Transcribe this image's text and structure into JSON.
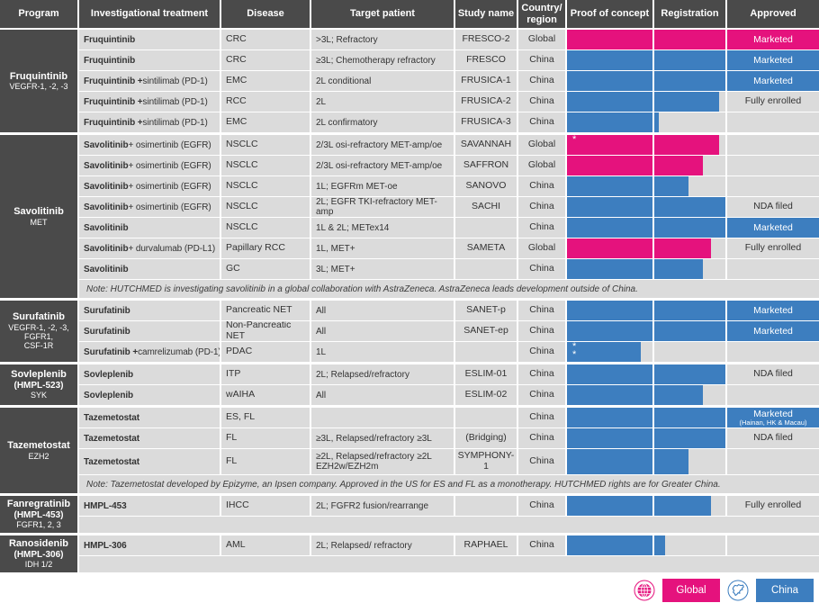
{
  "colors": {
    "pink": "#e5127d",
    "blue": "#3d7ebf",
    "dark": "#4a4a4a",
    "cell_bg": "#dbdbdb"
  },
  "legend": {
    "global_label": "Global",
    "china_label": "China"
  },
  "chart_data": {
    "type": "table",
    "columns": [
      "Program",
      "Investigational treatment",
      "Disease",
      "Target patient",
      "Study name",
      "Country/ region",
      "Proof of concept",
      "Registration",
      "Approved"
    ],
    "bar_note": "poc/reg values are percent fill of each phase column; color = country/region (pink Global, blue China)",
    "sections": [
      {
        "program": {
          "name": "Fruquintinib",
          "alias": "",
          "target": "VEGFR-1, -2, -3"
        },
        "rows": [
          {
            "t_bold": "Fruquintinib",
            "t_rest": "",
            "disease": "CRC",
            "target": ">3L; Refractory",
            "study": "FRESCO-2",
            "region": "Global",
            "color": "pink",
            "poc": 100,
            "reg": 100,
            "appr_fill": true,
            "appr_text": "Marketed",
            "appr_sub": "",
            "marker": ""
          },
          {
            "t_bold": "Fruquintinib",
            "t_rest": "",
            "disease": "CRC",
            "target": "≥3L; Chemotherapy refractory",
            "study": "FRESCO",
            "region": "China",
            "color": "blue",
            "poc": 100,
            "reg": 100,
            "appr_fill": true,
            "appr_text": "Marketed",
            "appr_sub": "",
            "marker": ""
          },
          {
            "t_bold": "Fruquintinib +",
            "t_rest": " sintilimab (PD-1)",
            "disease": "EMC",
            "target": "2L conditional",
            "study": "FRUSICA-1",
            "region": "China",
            "color": "blue",
            "poc": 100,
            "reg": 100,
            "appr_fill": true,
            "appr_text": "Marketed",
            "appr_sub": "",
            "marker": ""
          },
          {
            "t_bold": "Fruquintinib +",
            "t_rest": " sintilimab (PD-1)",
            "disease": "RCC",
            "target": "2L",
            "study": "FRUSICA-2",
            "region": "China",
            "color": "blue",
            "poc": 100,
            "reg": 91,
            "appr_fill": false,
            "appr_text": "Fully enrolled",
            "appr_sub": "",
            "marker": ""
          },
          {
            "t_bold": "Fruquintinib +",
            "t_rest": " sintilimab (PD-1)",
            "disease": "EMC",
            "target": "2L confirmatory",
            "study": "FRUSICA-3",
            "region": "China",
            "color": "blue",
            "poc": 100,
            "reg": 6,
            "appr_fill": false,
            "appr_text": "",
            "appr_sub": "",
            "marker": ""
          }
        ],
        "note": "",
        "filler": false
      },
      {
        "program": {
          "name": "Savolitinib",
          "alias": "",
          "target": "MET"
        },
        "rows": [
          {
            "t_bold": "Savolitinib",
            "t_rest": " + osimertinib (EGFR)",
            "disease": "NSCLC",
            "target": "2/3L osi-refractory MET-amp/oe",
            "study": "SAVANNAH",
            "region": "Global",
            "color": "pink",
            "poc": 100,
            "reg": 91,
            "appr_fill": false,
            "appr_text": "",
            "appr_sub": "",
            "marker": "*"
          },
          {
            "t_bold": "Savolitinib",
            "t_rest": " + osimertinib (EGFR)",
            "disease": "NSCLC",
            "target": "2/3L osi-refractory MET-amp/oe",
            "study": "SAFFRON",
            "region": "Global",
            "color": "pink",
            "poc": 100,
            "reg": 68,
            "appr_fill": false,
            "appr_text": "",
            "appr_sub": "",
            "marker": ""
          },
          {
            "t_bold": "Savolitinib",
            "t_rest": " + osimertinib (EGFR)",
            "disease": "NSCLC",
            "target": "1L; EGFRm MET-oe",
            "study": "SANOVO",
            "region": "China",
            "color": "blue",
            "poc": 100,
            "reg": 48,
            "appr_fill": false,
            "appr_text": "",
            "appr_sub": "",
            "marker": ""
          },
          {
            "t_bold": "Savolitinib",
            "t_rest": " + osimertinib (EGFR)",
            "disease": "NSCLC",
            "target": "2L; EGFR TKI-refractory MET-amp",
            "study": "SACHI",
            "region": "China",
            "color": "blue",
            "poc": 100,
            "reg": 100,
            "appr_fill": false,
            "appr_text": "NDA filed",
            "appr_sub": "",
            "marker": ""
          },
          {
            "t_bold": "Savolitinib",
            "t_rest": "",
            "disease": "NSCLC",
            "target": "1L & 2L; METex14",
            "study": "",
            "region": "China",
            "color": "blue",
            "poc": 100,
            "reg": 100,
            "appr_fill": true,
            "appr_text": "Marketed",
            "appr_sub": "",
            "marker": ""
          },
          {
            "t_bold": "Savolitinib",
            "t_rest": " + durvalumab (PD-L1)",
            "disease": "Papillary RCC",
            "target": "1L, MET+",
            "study": "SAMETA",
            "region": "Global",
            "color": "pink",
            "poc": 100,
            "reg": 80,
            "appr_fill": false,
            "appr_text": "Fully enrolled",
            "appr_sub": "",
            "marker": ""
          },
          {
            "t_bold": "Savolitinib",
            "t_rest": "",
            "disease": "GC",
            "target": "3L; MET+",
            "study": "",
            "region": "China",
            "color": "blue",
            "poc": 100,
            "reg": 68,
            "appr_fill": false,
            "appr_text": "",
            "appr_sub": "",
            "marker": ""
          }
        ],
        "note": "Note: HUTCHMED is investigating savolitinib in a global collaboration with AstraZeneca. AstraZeneca leads development outside of China.",
        "filler": false
      },
      {
        "program": {
          "name": "Surufatinib",
          "alias": "",
          "target": "VEGFR-1, -2, -3,\nFGFR1,\nCSF-1R"
        },
        "rows": [
          {
            "t_bold": "Surufatinib",
            "t_rest": "",
            "disease": "Pancreatic NET",
            "target": "All",
            "study": "SANET-p",
            "region": "China",
            "color": "blue",
            "poc": 100,
            "reg": 100,
            "appr_fill": true,
            "appr_text": "Marketed",
            "appr_sub": "",
            "marker": ""
          },
          {
            "t_bold": "Surufatinib",
            "t_rest": "",
            "disease": "Non-Pancreatic NET",
            "target": "All",
            "study": "SANET-ep",
            "region": "China",
            "color": "blue",
            "poc": 100,
            "reg": 100,
            "appr_fill": true,
            "appr_text": "Marketed",
            "appr_sub": "",
            "marker": ""
          },
          {
            "t_bold": "Surufatinib +",
            "t_rest": " camrelizumab (PD-1)",
            "disease": "PDAC",
            "target": "1L",
            "study": "",
            "region": "China",
            "color": "blue",
            "poc": 86,
            "reg": 0,
            "appr_fill": false,
            "appr_text": "",
            "appr_sub": "",
            "marker": "**"
          }
        ],
        "note": "",
        "filler": false
      },
      {
        "program": {
          "name": "Sovleplenib",
          "alias": "(HMPL-523)",
          "target": "SYK"
        },
        "rows": [
          {
            "t_bold": "Sovleplenib",
            "t_rest": "",
            "disease": "ITP",
            "target": "2L; Relapsed/refractory",
            "study": "ESLIM-01",
            "region": "China",
            "color": "blue",
            "poc": 100,
            "reg": 100,
            "appr_fill": false,
            "appr_text": "NDA filed",
            "appr_sub": "",
            "marker": ""
          },
          {
            "t_bold": "Sovleplenib",
            "t_rest": "",
            "disease": "wAIHA",
            "target": "All",
            "study": "ESLIM-02",
            "region": "China",
            "color": "blue",
            "poc": 100,
            "reg": 68,
            "appr_fill": false,
            "appr_text": "",
            "appr_sub": "",
            "marker": ""
          }
        ],
        "note": "",
        "filler": false
      },
      {
        "program": {
          "name": "Tazemetostat",
          "alias": "",
          "target": "EZH2"
        },
        "rows": [
          {
            "t_bold": "Tazemetostat",
            "t_rest": "",
            "disease": "ES, FL",
            "target": "",
            "study": "",
            "region": "China",
            "color": "blue",
            "poc": 100,
            "reg": 100,
            "appr_fill": true,
            "appr_text": "Marketed",
            "appr_sub": "(Hainan, HK & Macau)",
            "marker": ""
          },
          {
            "t_bold": "Tazemetostat",
            "t_rest": "",
            "disease": "FL",
            "target": "≥3L, Relapsed/refractory ≥3L",
            "study": "(Bridging)",
            "region": "China",
            "color": "blue",
            "poc": 100,
            "reg": 100,
            "appr_fill": false,
            "appr_text": "NDA filed",
            "appr_sub": "",
            "marker": ""
          },
          {
            "t_bold": "Tazemetostat",
            "t_rest": "",
            "disease": "FL",
            "target": "≥2L, Relapsed/refractory ≥2L EZH2w/EZH2m",
            "study": "SYMPHONY-1",
            "region": "China",
            "color": "blue",
            "poc": 100,
            "reg": 48,
            "appr_fill": false,
            "appr_text": "",
            "appr_sub": "",
            "marker": "",
            "h": 28
          }
        ],
        "note": "Note: Tazemetostat developed by Epizyme, an Ipsen company. Approved in the US for ES and FL as a monotherapy. HUTCHMED rights are for Greater China.",
        "filler": false
      },
      {
        "program": {
          "name": "Fanregratinib",
          "alias": "(HMPL-453)",
          "target": "FGFR1, 2, 3"
        },
        "rows": [
          {
            "t_bold": "HMPL-453",
            "t_rest": "",
            "disease": "IHCC",
            "target": "2L; FGFR2 fusion/rearrange",
            "study": "",
            "region": "China",
            "color": "blue",
            "poc": 100,
            "reg": 80,
            "appr_fill": false,
            "appr_text": "Fully enrolled",
            "appr_sub": "",
            "marker": ""
          }
        ],
        "note": "",
        "filler": true
      },
      {
        "program": {
          "name": "Ranosidenib",
          "alias": "(HMPL-306)",
          "target": "IDH 1/2"
        },
        "rows": [
          {
            "t_bold": "HMPL-306",
            "t_rest": "",
            "disease": "AML",
            "target": "2L; Relapsed/ refractory",
            "study": "RAPHAEL",
            "region": "China",
            "color": "blue",
            "poc": 100,
            "reg": 15,
            "appr_fill": false,
            "appr_text": "",
            "appr_sub": "",
            "marker": ""
          }
        ],
        "note": "",
        "filler": true
      }
    ]
  }
}
